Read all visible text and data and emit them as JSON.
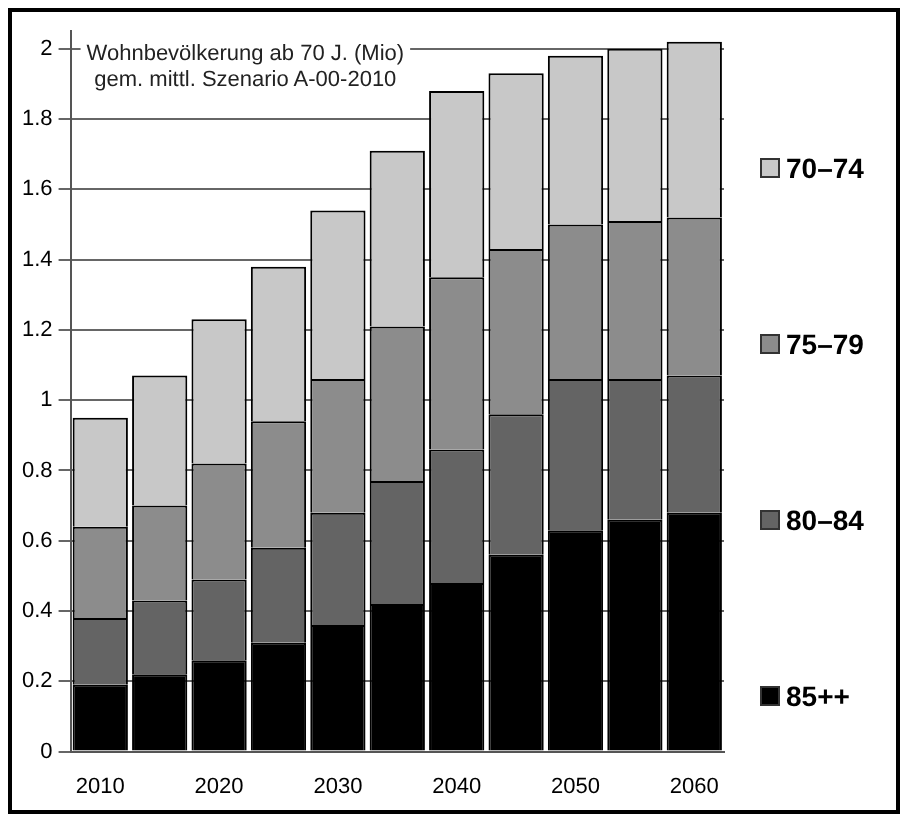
{
  "chart_data": {
    "type": "bar",
    "title": "Wohnbevölkerung ab 70 J. (Mio)",
    "subtitle": "gem. mittl. Szenario A-00-2010",
    "categories": [
      "2010",
      null,
      "2020",
      null,
      "2030",
      null,
      "2040",
      null,
      "2050",
      null,
      "2060"
    ],
    "stacked": true,
    "series": [
      {
        "name": "85++",
        "color": "#000000",
        "values": [
          0.19,
          0.22,
          0.26,
          0.31,
          0.36,
          0.42,
          0.48,
          0.56,
          0.63,
          0.66,
          0.68
        ]
      },
      {
        "name": "80–84",
        "color": "#646464",
        "values": [
          0.19,
          0.21,
          0.23,
          0.27,
          0.32,
          0.35,
          0.38,
          0.4,
          0.43,
          0.4,
          0.39
        ]
      },
      {
        "name": "75–79",
        "color": "#8c8c8c",
        "values": [
          0.26,
          0.27,
          0.33,
          0.36,
          0.38,
          0.44,
          0.49,
          0.47,
          0.44,
          0.45,
          0.45
        ]
      },
      {
        "name": "70–74",
        "color": "#c8c8c8",
        "values": [
          0.31,
          0.37,
          0.41,
          0.44,
          0.48,
          0.5,
          0.53,
          0.5,
          0.48,
          0.49,
          0.5
        ]
      }
    ],
    "ylim": [
      0,
      2.05
    ],
    "yticks": [
      0,
      0.2,
      0.4,
      0.6,
      0.8,
      1,
      1.2,
      1.4,
      1.6,
      1.8,
      2
    ],
    "grid": "y",
    "legend": "right"
  }
}
